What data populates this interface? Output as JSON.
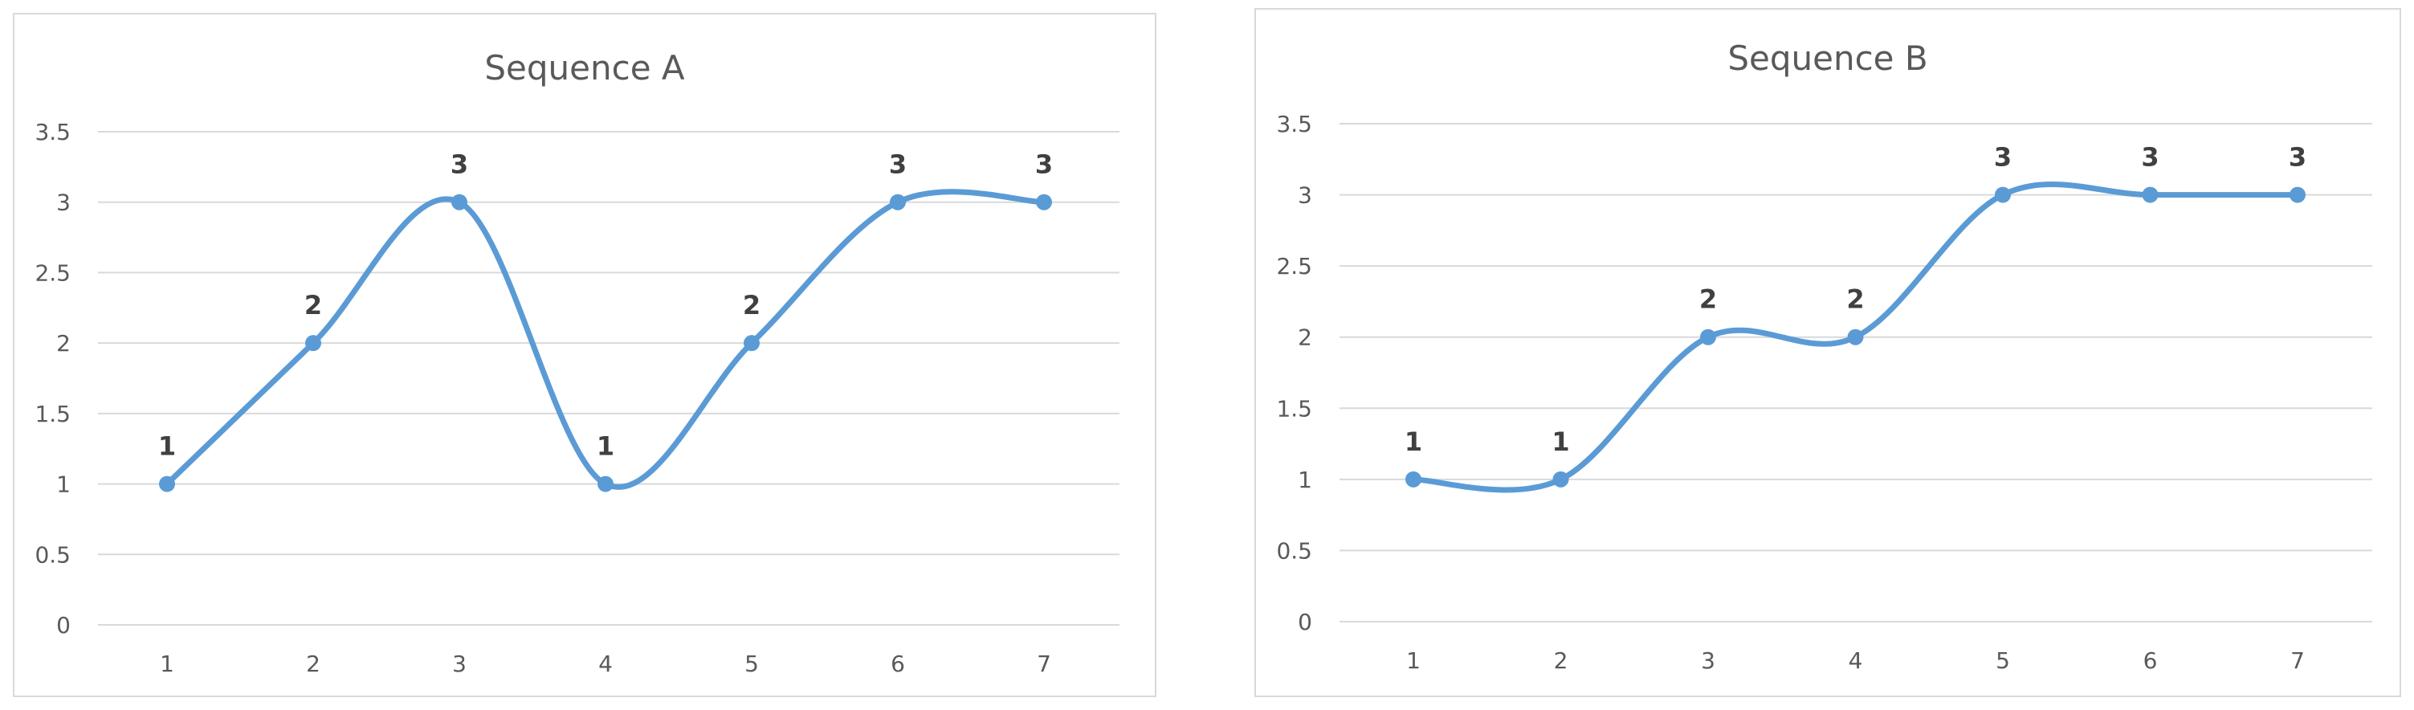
{
  "colors": {
    "series": "#5b9bd5",
    "grid": "#d9d9d9",
    "tick_text": "#595959",
    "data_label": "#404040",
    "title": "#595959"
  },
  "chart_data": [
    {
      "type": "line",
      "title": "Sequence A",
      "xlabel": "",
      "ylabel": "",
      "x": [
        1,
        2,
        3,
        4,
        5,
        6,
        7
      ],
      "series": [
        {
          "values": [
            1,
            2,
            3,
            1,
            2,
            3,
            3
          ]
        }
      ],
      "y_ticks": [
        "0",
        "0.5",
        "1",
        "1.5",
        "2",
        "2.5",
        "3",
        "3.5"
      ],
      "x_ticks": [
        "1",
        "2",
        "3",
        "4",
        "5",
        "6",
        "7"
      ],
      "ylim": [
        0,
        3.5
      ],
      "grid": true,
      "smooth": true,
      "markers": true,
      "data_labels": true,
      "legend": "none"
    },
    {
      "type": "line",
      "title": "Sequence B",
      "xlabel": "",
      "ylabel": "",
      "x": [
        1,
        2,
        3,
        4,
        5,
        6,
        7
      ],
      "series": [
        {
          "values": [
            1,
            1,
            2,
            2,
            3,
            3,
            3
          ]
        }
      ],
      "y_ticks": [
        "0",
        "0.5",
        "1",
        "1.5",
        "2",
        "2.5",
        "3",
        "3.5"
      ],
      "x_ticks": [
        "1",
        "2",
        "3",
        "4",
        "5",
        "6",
        "7"
      ],
      "ylim": [
        0,
        3.5
      ],
      "grid": true,
      "smooth": true,
      "markers": true,
      "data_labels": true,
      "legend": "none"
    }
  ]
}
